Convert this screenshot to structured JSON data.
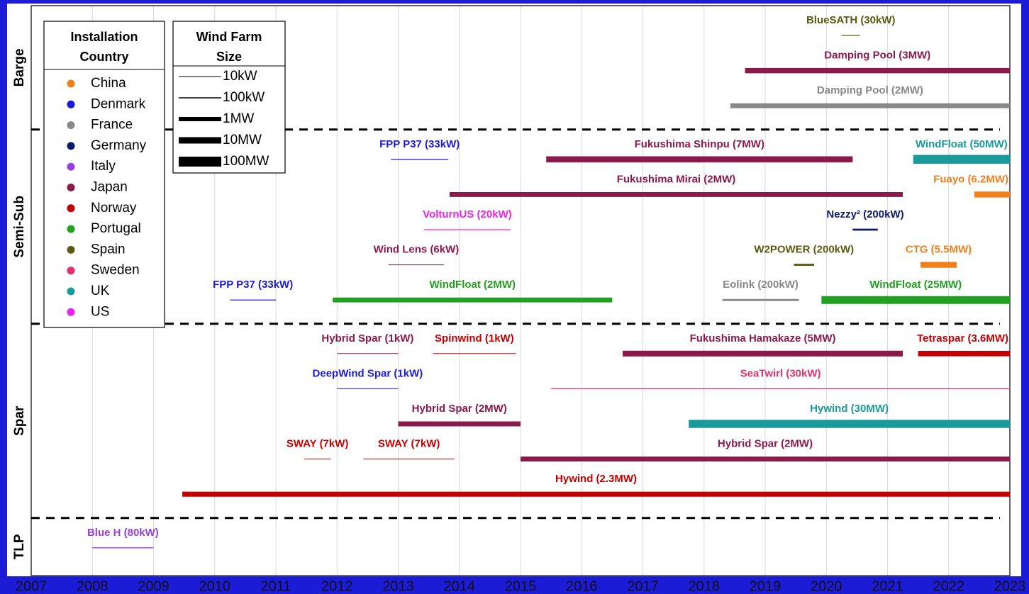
{
  "chart_data": {
    "type": "timeline",
    "xlim": [
      2007,
      2023
    ],
    "xticks": [
      2007,
      2008,
      2009,
      2010,
      2011,
      2012,
      2013,
      2014,
      2015,
      2016,
      2017,
      2018,
      2019,
      2020,
      2021,
      2022,
      2023
    ],
    "grid": true,
    "country_legend": {
      "title": [
        "Installation",
        "Country"
      ],
      "items": [
        {
          "name": "China",
          "color": "#f07f1e"
        },
        {
          "name": "Denmark",
          "color": "#1a1ad8"
        },
        {
          "name": "France",
          "color": "#888888"
        },
        {
          "name": "Germany",
          "color": "#0c1a6e"
        },
        {
          "name": "Italy",
          "color": "#9b40e0"
        },
        {
          "name": "Japan",
          "color": "#8b1a4c"
        },
        {
          "name": "Norway",
          "color": "#c40000"
        },
        {
          "name": "Portugal",
          "color": "#22a022"
        },
        {
          "name": "Spain",
          "color": "#5a5a10"
        },
        {
          "name": "Sweden",
          "color": "#e0336e"
        },
        {
          "name": "UK",
          "color": "#1a9a9a"
        },
        {
          "name": "US",
          "color": "#f020f0"
        }
      ]
    },
    "size_legend": {
      "title": [
        "Wind Farm",
        "Size"
      ],
      "items": [
        {
          "label": "10kW",
          "value": 10
        },
        {
          "label": "100kW",
          "value": 100
        },
        {
          "label": "1MW",
          "value": 1000
        },
        {
          "label": "10MW",
          "value": 10000
        },
        {
          "label": "100MW",
          "value": 100000
        }
      ]
    },
    "groups": [
      {
        "name": "Barge",
        "rows": [
          [
            {
              "label": "BlueSATH (30kW)",
              "start": 2020.25,
              "end": 2020.55,
              "country": "Spain",
              "size_kw": 30
            }
          ],
          [
            {
              "label": "Damping Pool (3MW)",
              "start": 2018.67,
              "end": 2023,
              "country": "Japan",
              "size_kw": 3000
            }
          ],
          [
            {
              "label": "Damping Pool (2MW)",
              "start": 2018.43,
              "end": 2023,
              "country": "France",
              "size_kw": 2000
            }
          ]
        ]
      },
      {
        "name": "Semi-Sub",
        "rows": [
          [
            {
              "label": "FPP P37 (33kW)",
              "start": 2012.88,
              "end": 2013.82,
              "country": "Denmark",
              "size_kw": 33
            },
            {
              "label": "Fukushima Shinpu (7MW)",
              "start": 2015.42,
              "end": 2020.43,
              "country": "Japan",
              "size_kw": 7000
            },
            {
              "label": "WindFloat (50MW)",
              "start": 2021.42,
              "end": 2023,
              "country": "UK",
              "size_kw": 50000
            }
          ],
          [
            {
              "label": "Fukushima Mirai (2MW)",
              "start": 2013.84,
              "end": 2021.25,
              "country": "Japan",
              "size_kw": 2000
            },
            {
              "label": "Fuayo (6.2MW)",
              "start": 2022.42,
              "end": 2023,
              "country": "China",
              "size_kw": 6200
            }
          ],
          [
            {
              "label": "VolturnUS (20kW)",
              "start": 2013.42,
              "end": 2014.84,
              "country": "US",
              "size_kw": 20
            },
            {
              "label": "Nezzy² (200kW)",
              "start": 2020.43,
              "end": 2020.84,
              "country": "Germany",
              "size_kw": 200
            }
          ],
          [
            {
              "label": "Wind Lens (6kW)",
              "start": 2012.84,
              "end": 2013.75,
              "country": "Japan",
              "size_kw": 6
            },
            {
              "label": "W2POWER (200kW)",
              "start": 2019.47,
              "end": 2019.8,
              "country": "Spain",
              "size_kw": 200
            },
            {
              "label": "CTG (5.5MW)",
              "start": 2021.54,
              "end": 2022.13,
              "country": "China",
              "size_kw": 5500
            }
          ],
          [
            {
              "label": "FPP P37 (33kW)",
              "start": 2010.25,
              "end": 2011.0,
              "country": "Denmark",
              "size_kw": 33
            },
            {
              "label": "WindFloat (2MW)",
              "start": 2011.93,
              "end": 2016.5,
              "country": "Portugal",
              "size_kw": 2000
            },
            {
              "label": "Eolink (200kW)",
              "start": 2018.3,
              "end": 2019.55,
              "country": "France",
              "size_kw": 200
            },
            {
              "label": "WindFloat (25MW)",
              "start": 2019.92,
              "end": 2023,
              "country": "Portugal",
              "size_kw": 25000
            }
          ]
        ]
      },
      {
        "name": "Spar",
        "rows": [
          [
            {
              "label": "Hybrid Spar (1kW)",
              "start": 2012,
              "end": 2013,
              "country": "Japan",
              "size_kw": 1
            },
            {
              "label": "Spinwind (1kW)",
              "start": 2013.57,
              "end": 2014.92,
              "country": "Norway",
              "size_kw": 1
            },
            {
              "label": "Fukushima Hamakaze (5MW)",
              "start": 2016.67,
              "end": 2021.25,
              "country": "Japan",
              "size_kw": 5000
            },
            {
              "label": "Tetraspar (3.6MW)",
              "start": 2021.5,
              "end": 2023,
              "country": "Norway",
              "size_kw": 3600
            }
          ],
          [
            {
              "label": "DeepWind Spar (1kW)",
              "start": 2012,
              "end": 2013,
              "country": "Denmark",
              "size_kw": 1
            },
            {
              "label": "SeaTwirl (30kW)",
              "start": 2015.5,
              "end": 2023,
              "country": "Sweden",
              "size_kw": 30
            }
          ],
          [
            {
              "label": "Hybrid Spar (2MW)",
              "start": 2013,
              "end": 2015,
              "country": "Japan",
              "size_kw": 2000
            },
            {
              "label": "Hywind (30MW)",
              "start": 2017.75,
              "end": 2023,
              "country": "UK",
              "size_kw": 30000
            }
          ],
          [
            {
              "label": "SWAY (7kW)",
              "start": 2011.46,
              "end": 2011.9,
              "country": "Norway",
              "size_kw": 7
            },
            {
              "label": "SWAY (7kW)",
              "start": 2012.43,
              "end": 2013.92,
              "country": "Norway",
              "size_kw": 7
            },
            {
              "label": "Hybrid Spar (2MW)",
              "start": 2015,
              "end": 2023,
              "country": "Japan",
              "size_kw": 2000
            }
          ],
          [
            {
              "label": "Hywind (2.3MW)",
              "start": 2009.47,
              "end": 2023,
              "country": "Norway",
              "size_kw": 2300
            }
          ]
        ]
      },
      {
        "name": "TLP",
        "rows": [
          [
            {
              "label": "Blue H (80kW)",
              "start": 2008,
              "end": 2009,
              "country": "Italy",
              "size_kw": 80
            }
          ]
        ]
      }
    ]
  }
}
